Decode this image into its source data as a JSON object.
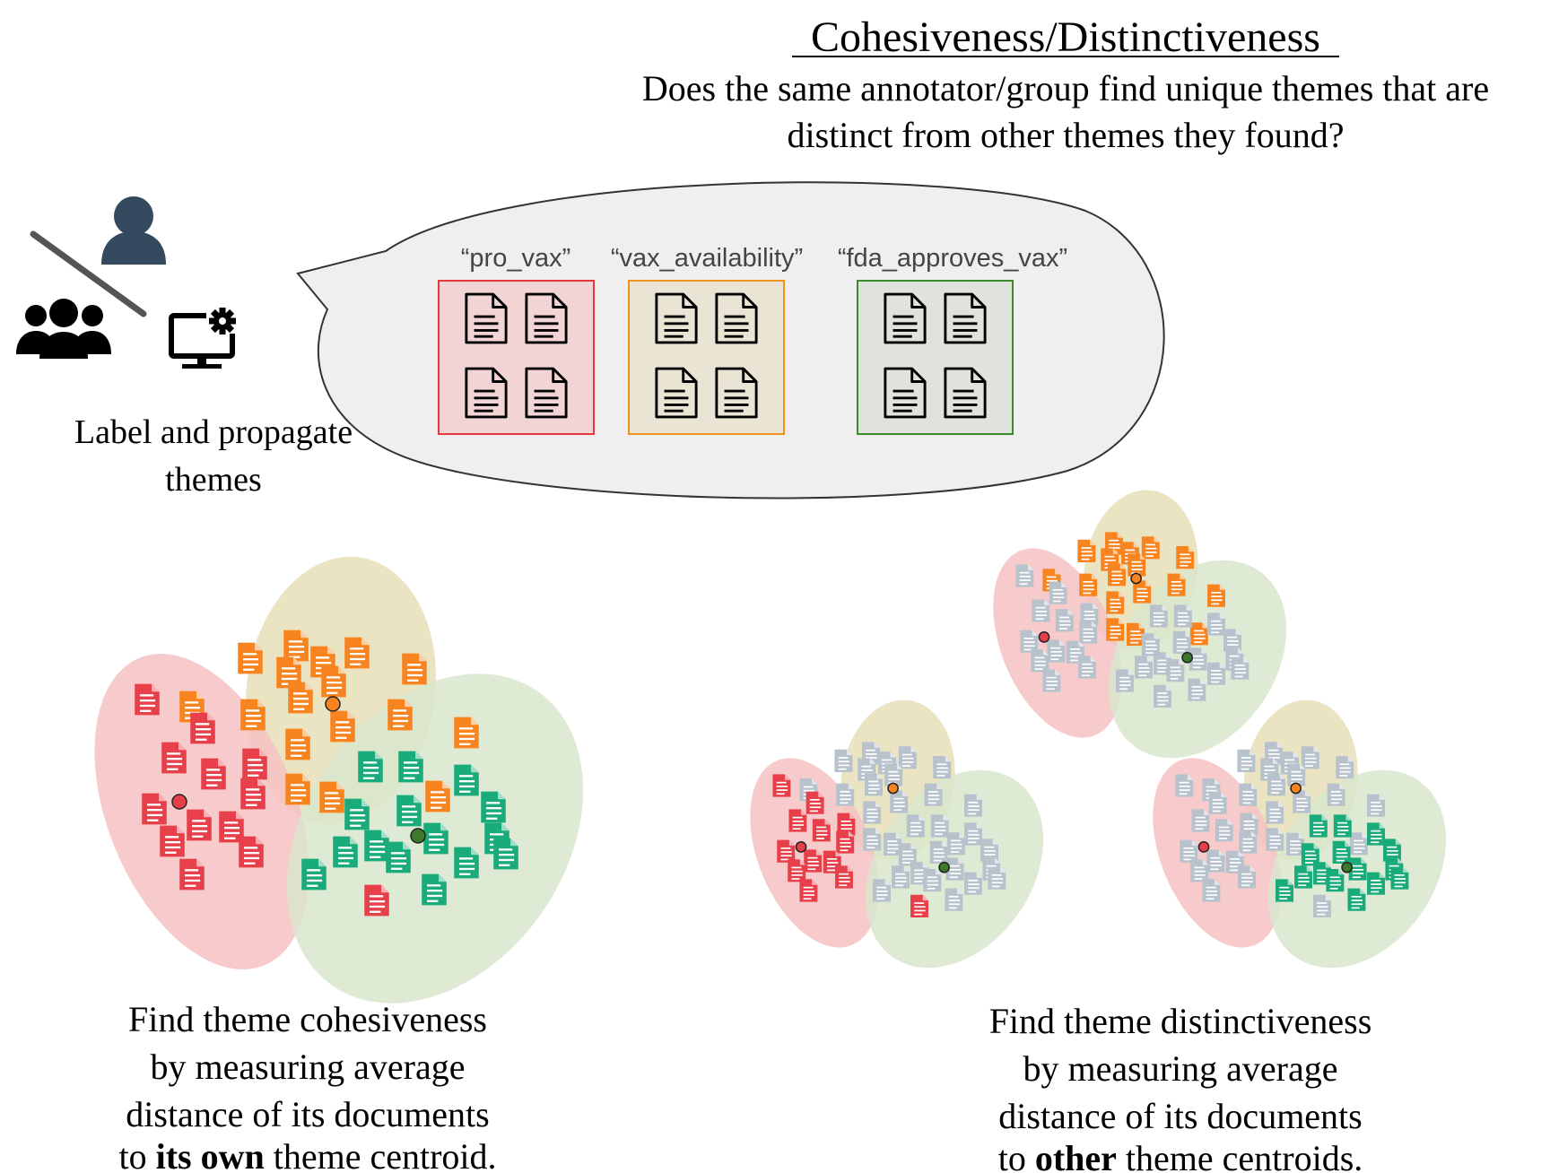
{
  "title": "Cohesiveness/Distinctiveness",
  "question": {
    "line1": "Does the same annotator/group find unique themes that are",
    "line2": "distinct from other themes they found?"
  },
  "actors": {
    "icons": [
      "person-icon",
      "group-icon",
      "computer-gear-icon"
    ],
    "label_line1": "Label and propagate",
    "label_line2": "themes"
  },
  "themes": [
    {
      "label": "“pro_vax”",
      "color": "#e8373e",
      "fill": "#f2d4d4"
    },
    {
      "label": "“vax_availability”",
      "color": "#f0911c",
      "fill": "#eae4d4"
    },
    {
      "label": "“fda_approves_vax”",
      "color": "#3b8a2c",
      "fill": "#dfe3db"
    }
  ],
  "colors": {
    "red": "#e8404a",
    "orange": "#f7841f",
    "green": "#1aab7b",
    "gray": "#b8c2cc",
    "ellipse_red": "#f6c2c2",
    "ellipse_tan": "#e8dfb8",
    "ellipse_green": "#d9e6cc",
    "bubble": "#efefef"
  },
  "captions": {
    "cohesiveness": {
      "line1": "Find theme cohesiveness",
      "line2": "by measuring average",
      "line3": "distance of its documents",
      "line4_pre": "to ",
      "line4_bold": "its own",
      "line4_post": " theme centroid."
    },
    "distinctiveness": {
      "line1": "Find theme distinctiveness",
      "line2": "by measuring average",
      "line3": "distance of its documents",
      "line4_pre": "to ",
      "line4_bold": "other",
      "line4_post": " theme centroids."
    }
  }
}
